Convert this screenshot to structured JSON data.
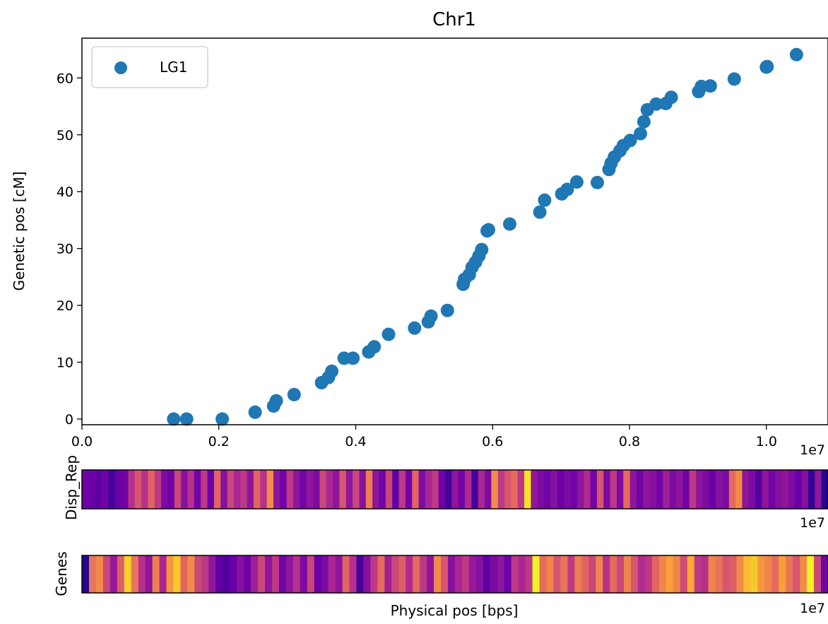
{
  "chart_data": [
    {
      "type": "scatter",
      "title": "Chr1",
      "xlabel": "",
      "ylabel": "Genetic pos [cM]",
      "xlim": [
        0.0,
        1.09
      ],
      "ylim": [
        -1,
        67
      ],
      "x_scale_label": "1e7",
      "x_ticks": [
        0.0,
        0.2,
        0.4,
        0.6,
        0.8,
        1.0
      ],
      "x_tick_labels": [
        "0.0",
        "0.2",
        "0.4",
        "0.6",
        "0.8",
        "1.0"
      ],
      "y_ticks": [
        0,
        10,
        20,
        30,
        40,
        50,
        60
      ],
      "y_tick_labels": [
        "0",
        "10",
        "20",
        "30",
        "40",
        "50",
        "60"
      ],
      "grid": false,
      "legend": {
        "position": "top-left",
        "entries": [
          "LG1"
        ]
      },
      "series": [
        {
          "name": "LG1",
          "color": "#1f77b4",
          "points": [
            [
              0.134,
              0.0
            ],
            [
              0.153,
              0.0
            ],
            [
              0.205,
              0.0
            ],
            [
              0.253,
              1.2
            ],
            [
              0.28,
              2.3
            ],
            [
              0.284,
              3.2
            ],
            [
              0.31,
              4.3
            ],
            [
              0.35,
              6.4
            ],
            [
              0.36,
              7.3
            ],
            [
              0.365,
              8.4
            ],
            [
              0.383,
              10.7
            ],
            [
              0.396,
              10.7
            ],
            [
              0.419,
              11.8
            ],
            [
              0.427,
              12.7
            ],
            [
              0.448,
              14.9
            ],
            [
              0.486,
              16.0
            ],
            [
              0.506,
              17.1
            ],
            [
              0.51,
              18.1
            ],
            [
              0.534,
              19.1
            ],
            [
              0.557,
              23.7
            ],
            [
              0.559,
              24.6
            ],
            [
              0.566,
              25.4
            ],
            [
              0.57,
              26.7
            ],
            [
              0.575,
              27.6
            ],
            [
              0.58,
              28.7
            ],
            [
              0.584,
              29.8
            ],
            [
              0.592,
              33.1
            ],
            [
              0.594,
              33.3
            ],
            [
              0.625,
              34.3
            ],
            [
              0.669,
              36.4
            ],
            [
              0.676,
              38.5
            ],
            [
              0.701,
              39.6
            ],
            [
              0.709,
              40.4
            ],
            [
              0.723,
              41.7
            ],
            [
              0.753,
              41.6
            ],
            [
              0.77,
              43.9
            ],
            [
              0.773,
              45.0
            ],
            [
              0.778,
              46.1
            ],
            [
              0.786,
              47.2
            ],
            [
              0.791,
              48.1
            ],
            [
              0.801,
              49.0
            ],
            [
              0.816,
              50.2
            ],
            [
              0.821,
              52.3
            ],
            [
              0.826,
              54.4
            ],
            [
              0.839,
              55.4
            ],
            [
              0.853,
              55.5
            ],
            [
              0.861,
              56.6
            ],
            [
              0.901,
              57.6
            ],
            [
              0.905,
              58.5
            ],
            [
              0.918,
              58.6
            ],
            [
              0.953,
              59.8
            ],
            [
              1.0,
              61.9
            ],
            [
              1.001,
              62.0
            ],
            [
              1.044,
              64.1
            ]
          ]
        }
      ]
    },
    {
      "type": "heatmap",
      "ylabel": "Disp_Rep",
      "x_scale_label": "1e7",
      "colormap": [
        "#0d0887",
        "#6a00a8",
        "#b12a90",
        "#e16462",
        "#fca636",
        "#f0f921"
      ],
      "values": [
        0.22,
        0.2,
        0.18,
        0.22,
        0.12,
        0.2,
        0.22,
        0.42,
        0.55,
        0.42,
        0.6,
        0.45,
        0.25,
        0.22,
        0.5,
        0.28,
        0.42,
        0.22,
        0.45,
        0.2,
        0.6,
        0.28,
        0.5,
        0.38,
        0.45,
        0.3,
        0.6,
        0.42,
        0.72,
        0.3,
        0.22,
        0.45,
        0.3,
        0.22,
        0.3,
        0.25,
        0.5,
        0.38,
        0.3,
        0.55,
        0.3,
        0.5,
        0.28,
        0.68,
        0.3,
        0.22,
        0.5,
        0.18,
        0.45,
        0.22,
        0.6,
        0.25,
        0.38,
        0.45,
        0.22,
        0.12,
        0.3,
        0.22,
        0.4,
        0.12,
        0.38,
        0.25,
        0.72,
        0.45,
        0.55,
        0.62,
        0.45,
        0.95,
        0.3,
        0.25,
        0.22,
        0.28,
        0.2,
        0.25,
        0.22,
        0.3,
        0.4,
        0.22,
        0.55,
        0.25,
        0.45,
        0.25,
        0.62,
        0.3,
        0.22,
        0.3,
        0.28,
        0.22,
        0.35,
        0.25,
        0.3,
        0.22,
        0.45,
        0.3,
        0.25,
        0.2,
        0.28,
        0.25,
        0.62,
        0.72,
        0.3,
        0.25,
        0.15,
        0.3,
        0.22,
        0.28,
        0.3,
        0.25,
        0.2,
        0.28,
        0.08,
        0.3,
        0.05
      ]
    },
    {
      "type": "heatmap",
      "ylabel": "Genes",
      "xlabel": "Physical pos [bps]",
      "x_scale_label": "1e7",
      "colormap": [
        "#0d0887",
        "#6a00a8",
        "#b12a90",
        "#e16462",
        "#fca636",
        "#f0f921"
      ],
      "values": [
        0.05,
        0.65,
        0.72,
        0.5,
        0.32,
        0.58,
        0.9,
        0.65,
        0.42,
        0.3,
        0.68,
        0.38,
        0.75,
        0.88,
        0.6,
        0.72,
        0.5,
        0.45,
        0.3,
        0.18,
        0.15,
        0.2,
        0.28,
        0.22,
        0.35,
        0.5,
        0.3,
        0.45,
        0.22,
        0.3,
        0.42,
        0.25,
        0.5,
        0.2,
        0.25,
        0.38,
        0.3,
        0.6,
        0.42,
        0.12,
        0.28,
        0.45,
        0.62,
        0.35,
        0.5,
        0.58,
        0.4,
        0.62,
        0.45,
        0.3,
        0.72,
        0.55,
        0.28,
        0.38,
        0.45,
        0.32,
        0.28,
        0.18,
        0.25,
        0.3,
        0.2,
        0.45,
        0.38,
        0.45,
        0.98,
        0.62,
        0.7,
        0.55,
        0.65,
        0.45,
        0.68,
        0.6,
        0.5,
        0.7,
        0.42,
        0.62,
        0.5,
        0.7,
        0.55,
        0.4,
        0.45,
        0.6,
        0.7,
        0.78,
        0.7,
        0.52,
        0.8,
        0.45,
        0.42,
        0.7,
        0.65,
        0.55,
        0.58,
        0.72,
        0.85,
        0.88,
        0.75,
        0.7,
        0.62,
        0.78,
        0.65,
        0.55,
        0.72,
        0.98,
        0.5,
        0.22
      ]
    }
  ]
}
